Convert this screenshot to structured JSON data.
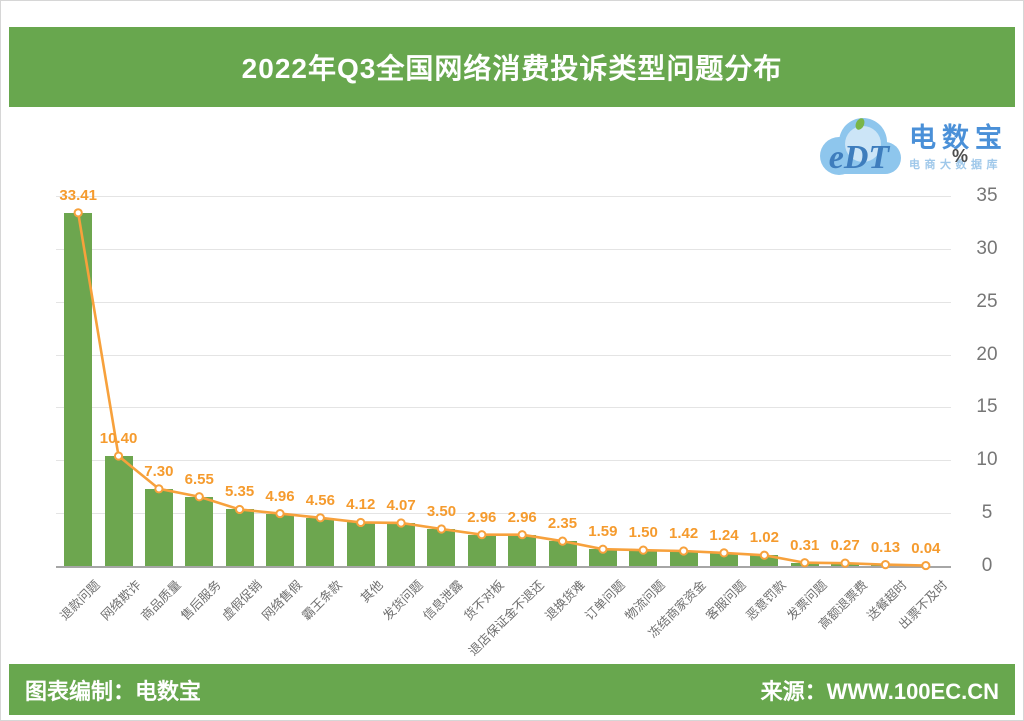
{
  "title": "2022年Q3全国网络消费投诉类型问题分布",
  "logo": {
    "mark": "eDT",
    "brand": "电数宝",
    "sub": "电商大数据库"
  },
  "footer": {
    "left": "图表编制：电数宝",
    "right": "来源：WWW.100EC.CN"
  },
  "colors": {
    "banner_green": "#68a74e",
    "bar_green": "#6da64f",
    "line_orange": "#f7a13c",
    "label_orange": "#f59b2e",
    "grid": "#e4e4e4",
    "axis": "#a6a6a6",
    "tick_gray": "#767676",
    "xlabel_gray": "#6f6f6f",
    "logo_blue": "#4a90d8",
    "logo_light_blue": "#9fc8ea"
  },
  "chart_data": {
    "type": "bar",
    "line_overlay": true,
    "title": "2022年Q3全国网络消费投诉类型问题分布",
    "unit_label": "%",
    "categories": [
      "退款问题",
      "网络欺诈",
      "商品质量",
      "售后服务",
      "虚假促销",
      "网络售假",
      "霸王条款",
      "其他",
      "发货问题",
      "信息泄露",
      "货不对板",
      "退店保证金不退还",
      "退换货难",
      "订单问题",
      "物流问题",
      "冻结商家资金",
      "客服问题",
      "恶意罚款",
      "发票问题",
      "高额退票费",
      "送餐超时",
      "出票不及时"
    ],
    "values": [
      33.41,
      10.4,
      7.3,
      6.55,
      5.35,
      4.96,
      4.56,
      4.12,
      4.07,
      3.5,
      2.96,
      2.96,
      2.35,
      1.59,
      1.5,
      1.42,
      1.24,
      1.02,
      0.31,
      0.27,
      0.13,
      0.04
    ],
    "value_labels": [
      "33.41",
      "10.40",
      "7.30",
      "6.55",
      "5.35",
      "4.96",
      "4.56",
      "4.12",
      "4.07",
      "3.50",
      "2.96",
      "2.96",
      "2.35",
      "1.59",
      "1.50",
      "1.42",
      "1.24",
      "1.02",
      "0.31",
      "0.27",
      "0.13",
      "0.04"
    ],
    "ylim": [
      0,
      35
    ],
    "yticks": [
      0,
      5,
      10,
      15,
      20,
      25,
      30,
      35
    ],
    "grid": true,
    "legend_position": "none",
    "xlabel": "",
    "ylabel": "%"
  }
}
